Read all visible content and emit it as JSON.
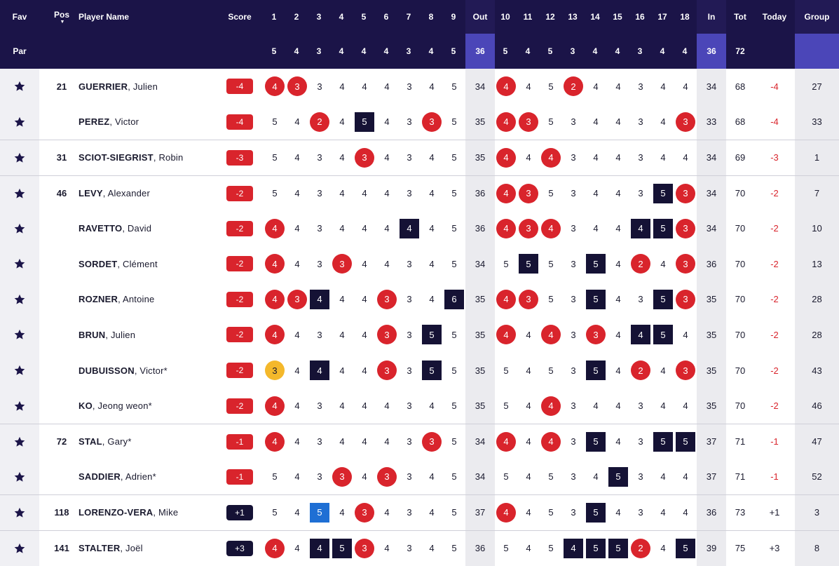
{
  "header": {
    "fav": "Fav",
    "pos": "Pos",
    "sort_arrow": "▼",
    "player_name": "Player Name",
    "score": "Score",
    "holes": [
      "1",
      "2",
      "3",
      "4",
      "5",
      "6",
      "7",
      "8",
      "9",
      "Out",
      "10",
      "11",
      "12",
      "13",
      "14",
      "15",
      "16",
      "17",
      "18",
      "In",
      "Tot",
      "Today",
      "Group"
    ]
  },
  "par_row": {
    "label": "Par",
    "values": [
      "5",
      "4",
      "3",
      "4",
      "4",
      "4",
      "3",
      "4",
      "5",
      "36",
      "5",
      "4",
      "5",
      "3",
      "4",
      "4",
      "3",
      "4",
      "4",
      "36",
      "72"
    ]
  },
  "colors": {
    "header_bg": "#1b1448",
    "under_par": "#d9242c",
    "over_par": "#151235",
    "eagle": "#f4b82b",
    "double_bogey": "#1f6fd4",
    "par_shade": "#4b46b8"
  },
  "icons": {
    "favorite": "star-icon"
  },
  "players": [
    {
      "pos": "21",
      "last": "GUERRIER",
      "first": "Julien",
      "score": "-4",
      "score_type": "under",
      "holes": [
        "4",
        "3",
        "3",
        "4",
        "4",
        "4",
        "3",
        "4",
        "5"
      ],
      "holes_in": [
        "4",
        "4",
        "5",
        "2",
        "4",
        "4",
        "3",
        "4",
        "4"
      ],
      "out": "34",
      "in": "34",
      "tot": "68",
      "today": "-4",
      "group": "27",
      "marks": [
        "b",
        "b",
        "",
        "",
        "",
        "",
        "",
        "",
        ""
      ],
      "marks_in": [
        "b",
        "",
        "",
        "b",
        "",
        "",
        "",
        "",
        ""
      ]
    },
    {
      "pos": "",
      "last": "PEREZ",
      "first": "Victor",
      "score": "-4",
      "score_type": "under",
      "holes": [
        "5",
        "4",
        "2",
        "4",
        "5",
        "4",
        "3",
        "3",
        "5"
      ],
      "holes_in": [
        "4",
        "3",
        "5",
        "3",
        "4",
        "4",
        "3",
        "4",
        "3"
      ],
      "out": "35",
      "in": "33",
      "tot": "68",
      "today": "-4",
      "group": "33",
      "marks": [
        "",
        "",
        "b",
        "",
        "o",
        "",
        "",
        "b",
        ""
      ],
      "marks_in": [
        "b",
        "b",
        "",
        "",
        "",
        "",
        "",
        "",
        "b"
      ]
    },
    {
      "pos": "31",
      "last": "SCIOT-SIEGRIST",
      "first": "Robin",
      "score": "-3",
      "score_type": "under",
      "holes": [
        "5",
        "4",
        "3",
        "4",
        "3",
        "4",
        "3",
        "4",
        "5"
      ],
      "holes_in": [
        "4",
        "4",
        "4",
        "3",
        "4",
        "4",
        "3",
        "4",
        "4"
      ],
      "out": "35",
      "in": "34",
      "tot": "69",
      "today": "-3",
      "group": "1",
      "marks": [
        "",
        "",
        "",
        "",
        "b",
        "",
        "",
        "",
        ""
      ],
      "marks_in": [
        "b",
        "",
        "b",
        "",
        "",
        "",
        "",
        "",
        ""
      ]
    },
    {
      "pos": "46",
      "last": "LEVY",
      "first": "Alexander",
      "score": "-2",
      "score_type": "under",
      "holes": [
        "5",
        "4",
        "3",
        "4",
        "4",
        "4",
        "3",
        "4",
        "5"
      ],
      "holes_in": [
        "4",
        "3",
        "5",
        "3",
        "4",
        "4",
        "3",
        "5",
        "3"
      ],
      "out": "36",
      "in": "34",
      "tot": "70",
      "today": "-2",
      "group": "7",
      "marks": [
        "",
        "",
        "",
        "",
        "",
        "",
        "",
        "",
        ""
      ],
      "marks_in": [
        "b",
        "b",
        "",
        "",
        "",
        "",
        "",
        "o",
        "b"
      ]
    },
    {
      "pos": "",
      "last": "RAVETTO",
      "first": "David",
      "score": "-2",
      "score_type": "under",
      "holes": [
        "4",
        "4",
        "3",
        "4",
        "4",
        "4",
        "4",
        "4",
        "5"
      ],
      "holes_in": [
        "4",
        "3",
        "4",
        "3",
        "4",
        "4",
        "4",
        "5",
        "3"
      ],
      "out": "36",
      "in": "34",
      "tot": "70",
      "today": "-2",
      "group": "10",
      "marks": [
        "b",
        "",
        "",
        "",
        "",
        "",
        "o",
        "",
        ""
      ],
      "marks_in": [
        "b",
        "b",
        "b",
        "",
        "",
        "",
        "o",
        "o",
        "b"
      ]
    },
    {
      "pos": "",
      "last": "SORDET",
      "first": "Clément",
      "score": "-2",
      "score_type": "under",
      "holes": [
        "4",
        "4",
        "3",
        "3",
        "4",
        "4",
        "3",
        "4",
        "5"
      ],
      "holes_in": [
        "5",
        "5",
        "5",
        "3",
        "5",
        "4",
        "2",
        "4",
        "3"
      ],
      "out": "34",
      "in": "36",
      "tot": "70",
      "today": "-2",
      "group": "13",
      "marks": [
        "b",
        "",
        "",
        "b",
        "",
        "",
        "",
        "",
        ""
      ],
      "marks_in": [
        "",
        "o",
        "",
        "",
        "o",
        "",
        "b",
        "",
        "b"
      ]
    },
    {
      "pos": "",
      "last": "ROZNER",
      "first": "Antoine",
      "score": "-2",
      "score_type": "under",
      "holes": [
        "4",
        "3",
        "4",
        "4",
        "4",
        "3",
        "3",
        "4",
        "6"
      ],
      "holes_in": [
        "4",
        "3",
        "5",
        "3",
        "5",
        "4",
        "3",
        "5",
        "3"
      ],
      "out": "35",
      "in": "35",
      "tot": "70",
      "today": "-2",
      "group": "28",
      "marks": [
        "b",
        "b",
        "o",
        "",
        "",
        "b",
        "",
        "",
        "o"
      ],
      "marks_in": [
        "b",
        "b",
        "",
        "",
        "o",
        "",
        "",
        "o",
        "b"
      ]
    },
    {
      "pos": "",
      "last": "BRUN",
      "first": "Julien",
      "score": "-2",
      "score_type": "under",
      "holes": [
        "4",
        "4",
        "3",
        "4",
        "4",
        "3",
        "3",
        "5",
        "5"
      ],
      "holes_in": [
        "4",
        "4",
        "4",
        "3",
        "3",
        "4",
        "4",
        "5",
        "4"
      ],
      "out": "35",
      "in": "35",
      "tot": "70",
      "today": "-2",
      "group": "28",
      "marks": [
        "b",
        "",
        "",
        "",
        "",
        "b",
        "",
        "o",
        ""
      ],
      "marks_in": [
        "b",
        "",
        "b",
        "",
        "b",
        "",
        "o",
        "o",
        ""
      ]
    },
    {
      "pos": "",
      "last": "DUBUISSON",
      "first": "Victor*",
      "score": "-2",
      "score_type": "under",
      "holes": [
        "3",
        "4",
        "4",
        "4",
        "4",
        "3",
        "3",
        "5",
        "5"
      ],
      "holes_in": [
        "5",
        "4",
        "5",
        "3",
        "5",
        "4",
        "2",
        "4",
        "3"
      ],
      "out": "35",
      "in": "35",
      "tot": "70",
      "today": "-2",
      "group": "43",
      "marks": [
        "e",
        "",
        "o",
        "",
        "",
        "b",
        "",
        "o",
        ""
      ],
      "marks_in": [
        "",
        "",
        "",
        "",
        "o",
        "",
        "b",
        "",
        "b"
      ]
    },
    {
      "pos": "",
      "last": "KO",
      "first": "Jeong weon*",
      "score": "-2",
      "score_type": "under",
      "holes": [
        "4",
        "4",
        "3",
        "4",
        "4",
        "4",
        "3",
        "4",
        "5"
      ],
      "holes_in": [
        "5",
        "4",
        "4",
        "3",
        "4",
        "4",
        "3",
        "4",
        "4"
      ],
      "out": "35",
      "in": "35",
      "tot": "70",
      "today": "-2",
      "group": "46",
      "marks": [
        "b",
        "",
        "",
        "",
        "",
        "",
        "",
        "",
        ""
      ],
      "marks_in": [
        "",
        "",
        "b",
        "",
        "",
        "",
        "",
        "",
        ""
      ]
    },
    {
      "pos": "72",
      "last": "STAL",
      "first": "Gary*",
      "score": "-1",
      "score_type": "under",
      "holes": [
        "4",
        "4",
        "3",
        "4",
        "4",
        "4",
        "3",
        "3",
        "5"
      ],
      "holes_in": [
        "4",
        "4",
        "4",
        "3",
        "5",
        "4",
        "3",
        "5",
        "5"
      ],
      "out": "34",
      "in": "37",
      "tot": "71",
      "today": "-1",
      "group": "47",
      "marks": [
        "b",
        "",
        "",
        "",
        "",
        "",
        "",
        "b",
        ""
      ],
      "marks_in": [
        "b",
        "",
        "b",
        "",
        "o",
        "",
        "",
        "o",
        "o"
      ]
    },
    {
      "pos": "",
      "last": "SADDIER",
      "first": "Adrien*",
      "score": "-1",
      "score_type": "under",
      "holes": [
        "5",
        "4",
        "3",
        "3",
        "4",
        "3",
        "3",
        "4",
        "5"
      ],
      "holes_in": [
        "5",
        "4",
        "5",
        "3",
        "4",
        "5",
        "3",
        "4",
        "4"
      ],
      "out": "34",
      "in": "37",
      "tot": "71",
      "today": "-1",
      "group": "52",
      "marks": [
        "",
        "",
        "",
        "b",
        "",
        "b",
        "",
        "",
        ""
      ],
      "marks_in": [
        "",
        "",
        "",
        "",
        "",
        "o",
        "",
        "",
        ""
      ]
    },
    {
      "pos": "118",
      "last": "LORENZO-VERA",
      "first": "Mike",
      "score": "+1",
      "score_type": "over",
      "holes": [
        "5",
        "4",
        "5",
        "4",
        "3",
        "4",
        "3",
        "4",
        "5"
      ],
      "holes_in": [
        "4",
        "4",
        "5",
        "3",
        "5",
        "4",
        "3",
        "4",
        "4"
      ],
      "out": "37",
      "in": "36",
      "tot": "73",
      "today": "+1",
      "group": "3",
      "marks": [
        "",
        "",
        "d",
        "",
        "b",
        "",
        "",
        "",
        ""
      ],
      "marks_in": [
        "b",
        "",
        "",
        "",
        "o",
        "",
        "",
        "",
        ""
      ]
    },
    {
      "pos": "141",
      "last": "STALTER",
      "first": "Joël",
      "score": "+3",
      "score_type": "over",
      "holes": [
        "4",
        "4",
        "4",
        "5",
        "3",
        "4",
        "3",
        "4",
        "5"
      ],
      "holes_in": [
        "5",
        "4",
        "5",
        "4",
        "5",
        "5",
        "2",
        "4",
        "5"
      ],
      "out": "36",
      "in": "39",
      "tot": "75",
      "today": "+3",
      "group": "8",
      "marks": [
        "b",
        "",
        "o",
        "o",
        "b",
        "",
        "",
        "",
        ""
      ],
      "marks_in": [
        "",
        "",
        "",
        "o",
        "o",
        "o",
        "b",
        "",
        "o"
      ]
    }
  ]
}
